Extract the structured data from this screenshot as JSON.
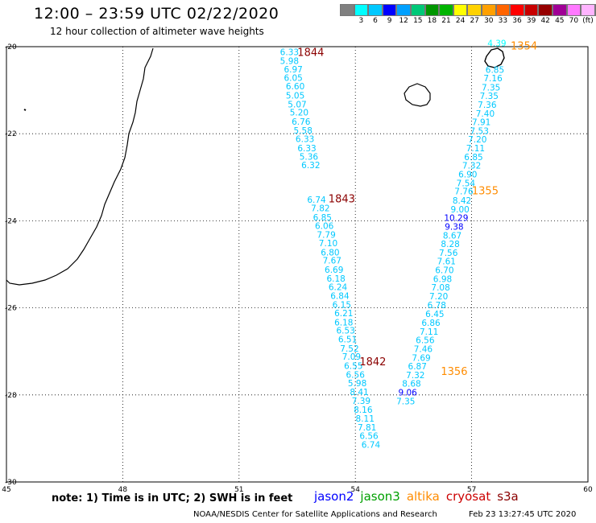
{
  "title": "12:00 – 23:59 UTC 02/22/2020",
  "subtitle": "12 hour collection of altimeter wave heights",
  "colorbar": {
    "colors": [
      "#808080",
      "#00ffff",
      "#00c8ff",
      "#0000ff",
      "#00a0ff",
      "#00c878",
      "#009600",
      "#00b400",
      "#ffff00",
      "#ffd200",
      "#ffa000",
      "#ff6400",
      "#ff0000",
      "#c80000",
      "#960000",
      "#a00096",
      "#ff78ff",
      "#ffb4ff",
      "#ffffff",
      "#000000"
    ],
    "tick_labels": [
      "3",
      "6",
      "9",
      "12",
      "15",
      "18",
      "21",
      "24",
      "27",
      "30",
      "33",
      "36",
      "39",
      "42",
      "45",
      "70",
      "(ft)"
    ]
  },
  "axes": {
    "x_ticks": [
      "45",
      "48",
      "51",
      "54",
      "57",
      "60"
    ],
    "x_values": [
      45,
      48,
      51,
      54,
      57,
      60
    ],
    "y_ticks": [
      "-20",
      "-22",
      "-24",
      "-26",
      "-28",
      "-30"
    ],
    "y_values": [
      -20,
      -22,
      -24,
      -26,
      -28,
      -30
    ],
    "xlim": [
      45,
      60
    ],
    "ylim": [
      -30,
      -20
    ],
    "grid": true
  },
  "passes": [
    {
      "label": "1844",
      "color": "#8b0000",
      "lon": 52.85,
      "lat": -20.12
    },
    {
      "label": "1843",
      "color": "#8b0000",
      "lon": 53.65,
      "lat": -23.48
    },
    {
      "label": "1842",
      "color": "#8b0000",
      "lon": 54.45,
      "lat": -27.23
    },
    {
      "label": "1354",
      "color": "#ff8c00",
      "lon": 58.35,
      "lat": -19.97
    },
    {
      "label": "1355",
      "color": "#ff8c00",
      "lon": 57.35,
      "lat": -23.3
    },
    {
      "label": "1356",
      "color": "#ff8c00",
      "lon": 56.55,
      "lat": -27.45
    }
  ],
  "track_left": {
    "values": [
      "6.33",
      "5.98",
      "6.97",
      "6.05",
      "6.60",
      "5.05",
      "5.07",
      "5.20",
      "6.76",
      "5.58",
      "6.33",
      "6.33",
      "5.36",
      "6.32",
      "6.74",
      "7.82",
      "6.85",
      "6.06",
      "7.79",
      "7.10",
      "6.80",
      "7.67",
      "6.69",
      "6.18",
      "6.24",
      "6.84",
      "6.15",
      "6.21",
      "6.18",
      "6.53",
      "6.51",
      "7.52",
      "7.09",
      "6.55",
      "6.56",
      "5.98",
      "8.41",
      "7.39",
      "8.16",
      "8.11",
      "7.81",
      "6.56",
      "6.74"
    ],
    "colors": [
      "#00c8ff",
      "#00c8ff",
      "#00c8ff",
      "#00c8ff",
      "#00c8ff",
      "#00c8ff",
      "#00c8ff",
      "#00c8ff",
      "#00c8ff",
      "#00c8ff",
      "#00c8ff",
      "#00c8ff",
      "#00c8ff",
      "#00c8ff",
      "#00c8ff",
      "#00c8ff",
      "#00c8ff",
      "#00c8ff",
      "#00c8ff",
      "#00c8ff",
      "#00c8ff",
      "#00c8ff",
      "#00c8ff",
      "#00c8ff",
      "#00c8ff",
      "#00c8ff",
      "#00c8ff",
      "#00c8ff",
      "#00c8ff",
      "#00c8ff",
      "#00c8ff",
      "#00c8ff",
      "#00c8ff",
      "#00c8ff",
      "#00c8ff",
      "#00c8ff",
      "#00c8ff",
      "#00c8ff",
      "#00c8ff",
      "#00c8ff",
      "#00c8ff",
      "#00c8ff",
      "#00c8ff"
    ],
    "lons": [
      52.3,
      52.3,
      52.4,
      52.4,
      52.45,
      52.45,
      52.5,
      52.55,
      52.6,
      52.65,
      52.7,
      52.75,
      52.8,
      52.85,
      53.0,
      53.1,
      53.15,
      53.2,
      53.25,
      53.3,
      53.35,
      53.4,
      53.45,
      53.5,
      53.55,
      53.6,
      53.65,
      53.7,
      53.7,
      53.75,
      53.8,
      53.85,
      53.9,
      53.95,
      54.0,
      54.05,
      54.1,
      54.15,
      54.2,
      54.25,
      54.3,
      54.35,
      54.4
    ],
    "lats": [
      -20.12,
      -20.32,
      -20.52,
      -20.71,
      -20.91,
      -21.12,
      -21.32,
      -21.51,
      -21.72,
      -21.92,
      -22.12,
      -22.33,
      -22.52,
      -22.72,
      -23.51,
      -23.71,
      -23.92,
      -24.11,
      -24.32,
      -24.51,
      -24.72,
      -24.91,
      -25.12,
      -25.32,
      -25.52,
      -25.72,
      -25.92,
      -26.12,
      -26.33,
      -26.52,
      -26.72,
      -26.93,
      -27.12,
      -27.33,
      -27.53,
      -27.73,
      -27.93,
      -28.13,
      -28.34,
      -28.54,
      -28.74,
      -28.94,
      -29.14
    ]
  },
  "track_right": {
    "values": [
      "4.39",
      "6.85",
      "7.16",
      "7.35",
      "7.35",
      "7.36",
      "7.40",
      "7.91",
      "7.53",
      "7.20",
      "7.11",
      "6.85",
      "7.32",
      "6.90",
      "7.54",
      "7.76",
      "8.42",
      "9.00",
      "10.29",
      "9.38",
      "8.67",
      "8.28",
      "7.56",
      "7.61",
      "6.70",
      "6.98",
      "7.08",
      "7.20",
      "6.78",
      "6.45",
      "6.86",
      "7.11",
      "6.56",
      "7.46",
      "7.69",
      "6.87",
      "7.32",
      "8.68",
      "9.06",
      "7.35"
    ],
    "colors": [
      "#00ffff",
      "#00c8ff",
      "#00c8ff",
      "#00c8ff",
      "#00c8ff",
      "#00c8ff",
      "#00c8ff",
      "#00c8ff",
      "#00c8ff",
      "#00c8ff",
      "#00c8ff",
      "#00c8ff",
      "#00c8ff",
      "#00c8ff",
      "#00c8ff",
      "#00c8ff",
      "#00c8ff",
      "#00c8ff",
      "#0000ff",
      "#0000ff",
      "#00c8ff",
      "#00c8ff",
      "#00c8ff",
      "#00c8ff",
      "#00c8ff",
      "#00c8ff",
      "#00c8ff",
      "#00c8ff",
      "#00c8ff",
      "#00c8ff",
      "#00c8ff",
      "#00c8ff",
      "#00c8ff",
      "#00c8ff",
      "#00c8ff",
      "#00c8ff",
      "#00c8ff",
      "#00c8ff",
      "#0000ff",
      "#00c8ff"
    ],
    "lons": [
      57.65,
      57.6,
      57.55,
      57.5,
      57.45,
      57.4,
      57.35,
      57.25,
      57.2,
      57.15,
      57.1,
      57.05,
      57.0,
      56.9,
      56.85,
      56.8,
      56.75,
      56.7,
      56.6,
      56.55,
      56.5,
      56.45,
      56.4,
      56.35,
      56.3,
      56.25,
      56.2,
      56.15,
      56.1,
      56.05,
      55.95,
      55.9,
      55.8,
      55.75,
      55.7,
      55.6,
      55.55,
      55.45,
      55.35,
      55.3
    ],
    "lats": [
      -19.92,
      -20.53,
      -20.72,
      -20.93,
      -21.13,
      -21.33,
      -21.53,
      -21.73,
      -21.93,
      -22.13,
      -22.33,
      -22.53,
      -22.73,
      -22.93,
      -23.13,
      -23.32,
      -23.53,
      -23.73,
      -23.93,
      -24.13,
      -24.33,
      -24.53,
      -24.73,
      -24.93,
      -25.13,
      -25.33,
      -25.53,
      -25.73,
      -25.93,
      -26.14,
      -26.34,
      -26.54,
      -26.74,
      -26.94,
      -27.14,
      -27.34,
      -27.54,
      -27.74,
      -27.94,
      -28.14
    ]
  },
  "note": "note:  1) Time is in UTC;  2) SWH is in feet",
  "legend": [
    {
      "label": "jason2",
      "color": "#0000ff"
    },
    {
      "label": "jason3",
      "color": "#00a000"
    },
    {
      "label": "altika",
      "color": "#ff8c00"
    },
    {
      "label": "cryosat",
      "color": "#cc0000"
    },
    {
      "label": "s3a",
      "color": "#8b0000"
    }
  ],
  "credit": "NOAA/NESDIS Center for Satellite Applications and Research",
  "timestamp": "Feb 23 13:27:45 UTC 2020"
}
